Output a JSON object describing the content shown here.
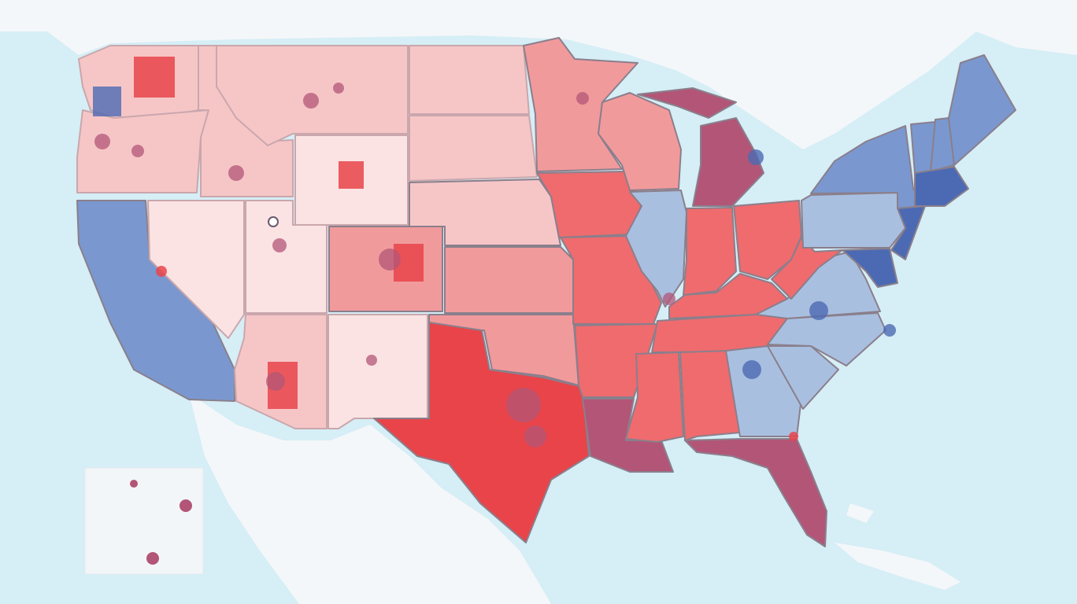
{
  "colors": {
    "ocean": "#d6eef6",
    "land_foreign": "#f4f7f9",
    "deep_red": "#e8444a",
    "red": "#ef6b6e",
    "mid_red": "#f19a9c",
    "light_red": "#f6c6c7",
    "pale_red": "#fbe3e3",
    "purple": "#b35577",
    "light_blue": "#a9bfe0",
    "blue": "#7a98cf",
    "deep_blue": "#4c6ab3",
    "border": "#8a7f8c"
  },
  "regions": [
    {
      "id": "WA",
      "shade": "light_red"
    },
    {
      "id": "OR",
      "shade": "light_red"
    },
    {
      "id": "CA",
      "shade": "blue"
    },
    {
      "id": "NV",
      "shade": "pale_red"
    },
    {
      "id": "ID",
      "shade": "light_red"
    },
    {
      "id": "MT",
      "shade": "light_red"
    },
    {
      "id": "WY",
      "shade": "pale_red"
    },
    {
      "id": "UT",
      "shade": "pale_red"
    },
    {
      "id": "CO",
      "shade": "mid_red"
    },
    {
      "id": "AZ",
      "shade": "light_red"
    },
    {
      "id": "NM",
      "shade": "pale_red"
    },
    {
      "id": "ND",
      "shade": "light_red"
    },
    {
      "id": "SD",
      "shade": "light_red"
    },
    {
      "id": "NE",
      "shade": "light_red"
    },
    {
      "id": "KS",
      "shade": "mid_red"
    },
    {
      "id": "OK",
      "shade": "mid_red"
    },
    {
      "id": "TX",
      "shade": "deep_red"
    },
    {
      "id": "MN",
      "shade": "mid_red"
    },
    {
      "id": "IA",
      "shade": "red"
    },
    {
      "id": "MO",
      "shade": "red"
    },
    {
      "id": "AR",
      "shade": "red"
    },
    {
      "id": "LA",
      "shade": "purple"
    },
    {
      "id": "WI",
      "shade": "mid_red"
    },
    {
      "id": "IL",
      "shade": "light_blue"
    },
    {
      "id": "MI",
      "shade": "purple"
    },
    {
      "id": "IN",
      "shade": "red"
    },
    {
      "id": "OH",
      "shade": "red"
    },
    {
      "id": "KY",
      "shade": "red"
    },
    {
      "id": "TN",
      "shade": "red"
    },
    {
      "id": "MS",
      "shade": "red"
    },
    {
      "id": "AL",
      "shade": "red"
    },
    {
      "id": "GA",
      "shade": "light_blue"
    },
    {
      "id": "FL",
      "shade": "purple"
    },
    {
      "id": "SC",
      "shade": "light_blue"
    },
    {
      "id": "NC",
      "shade": "light_blue"
    },
    {
      "id": "VA",
      "shade": "light_blue"
    },
    {
      "id": "WV",
      "shade": "red"
    },
    {
      "id": "PA",
      "shade": "light_blue"
    },
    {
      "id": "NY",
      "shade": "blue"
    },
    {
      "id": "VT",
      "shade": "blue"
    },
    {
      "id": "NH",
      "shade": "blue"
    },
    {
      "id": "ME",
      "shade": "blue"
    },
    {
      "id": "MA",
      "shade": "deep_blue"
    },
    {
      "id": "NJ",
      "shade": "deep_blue"
    },
    {
      "id": "MD",
      "shade": "deep_blue"
    },
    {
      "id": "HI",
      "shade": "pale_red"
    }
  ],
  "icons": {
    "landmark_marker": "map-pin-icon"
  }
}
